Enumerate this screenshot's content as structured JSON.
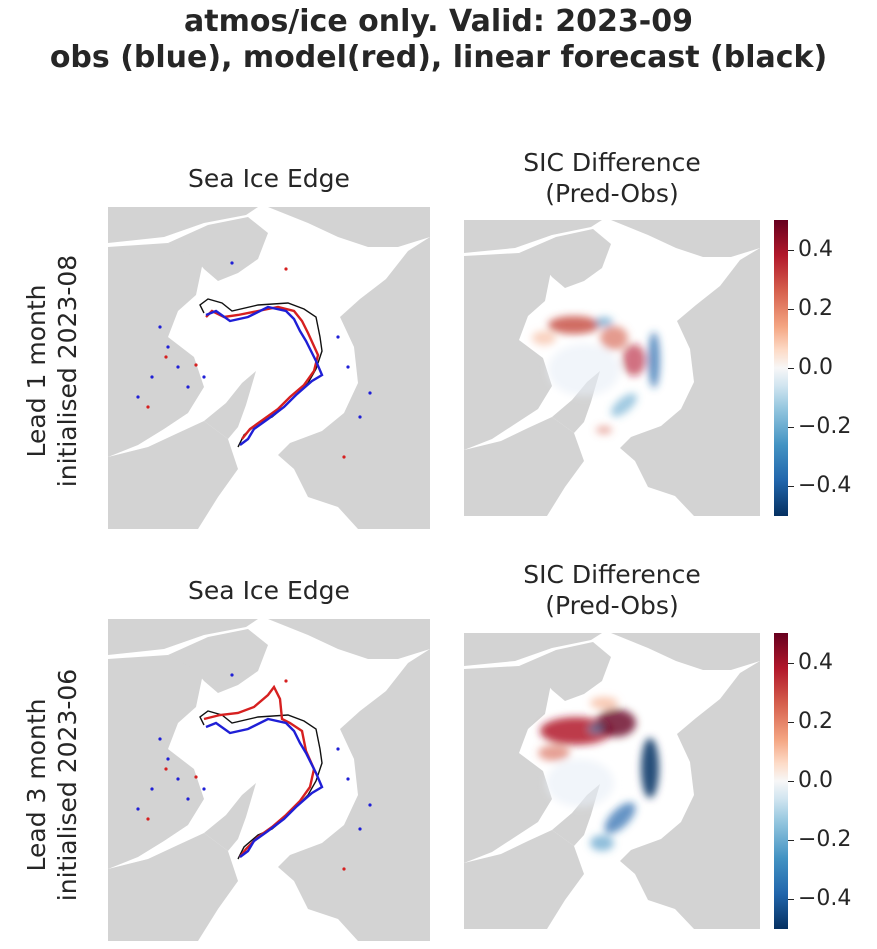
{
  "figure": {
    "title_line1": "atmos/ice only. Valid: 2023-09",
    "title_line2": "obs (blue), model(red), linear forecast (black)"
  },
  "rows": [
    {
      "label_line1": "Lead 1 month",
      "label_line2": "initialised 2023-08"
    },
    {
      "label_line1": "Lead 3 month",
      "label_line2": "initialised 2023-06"
    }
  ],
  "chart_data": [
    {
      "type": "map",
      "title": "Sea Ice Edge",
      "row": 0,
      "series": [
        {
          "name": "obs",
          "color": "#1f1fd6"
        },
        {
          "name": "model",
          "color": "#d62020"
        },
        {
          "name": "linear forecast",
          "color": "#111111"
        }
      ]
    },
    {
      "type": "heatmap",
      "title_line1": "SIC Difference",
      "title_line2": "(Pred-Obs)",
      "row": 0,
      "colorbar": {
        "range": [
          -0.5,
          0.5
        ],
        "ticks": [
          0.4,
          0.2,
          0.0,
          -0.2,
          -0.4
        ],
        "tick_labels": [
          "0.4",
          "0.2",
          "0.0",
          "−0.2",
          "−0.4"
        ]
      }
    },
    {
      "type": "map",
      "title": "Sea Ice Edge",
      "row": 1,
      "series": [
        {
          "name": "obs",
          "color": "#1f1fd6"
        },
        {
          "name": "model",
          "color": "#d62020"
        },
        {
          "name": "linear forecast",
          "color": "#111111"
        }
      ]
    },
    {
      "type": "heatmap",
      "title_line1": "SIC Difference",
      "title_line2": "(Pred-Obs)",
      "row": 1,
      "colorbar": {
        "range": [
          -0.5,
          0.5
        ],
        "ticks": [
          0.4,
          0.2,
          0.0,
          -0.2,
          -0.4
        ],
        "tick_labels": [
          "0.4",
          "0.2",
          "0.0",
          "−0.2",
          "−0.4"
        ]
      }
    }
  ],
  "colors": {
    "land": "#d3d3d3",
    "ocean": "#ffffff",
    "cmap_high": "#67001f",
    "cmap_low": "#053061"
  }
}
